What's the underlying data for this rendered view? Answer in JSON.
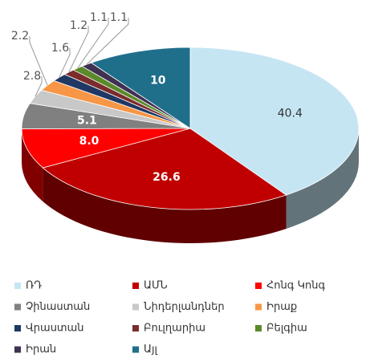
{
  "chart_data": {
    "type": "pie3d",
    "categories": [
      "ՌԴ",
      "ԱՄՆ",
      "Հոնգ Կոնգ",
      "Չինաստան",
      "Նիդերլանդներ",
      "Իրաք",
      "Վրաստան",
      "Բուլղարիա",
      "Բելգիա",
      "Իրան",
      "Այլ"
    ],
    "values": [
      40.4,
      26.6,
      8.0,
      5.1,
      2.8,
      2.2,
      1.6,
      1.2,
      1.1,
      1.1,
      10
    ],
    "value_labels": [
      "40.4",
      "26.6",
      "8.0",
      "5.1",
      "2.8",
      "2.2",
      "1.6",
      "1.2",
      "1.1",
      "1.1",
      "10"
    ],
    "colors": [
      "#c6e5f3",
      "#c00000",
      "#ff0000",
      "#808080",
      "#c8c8c8",
      "#f79646",
      "#1f3864",
      "#7b2c2c",
      "#5b8a2a",
      "#403152",
      "#1f6f8b"
    ],
    "legend": "bottom"
  }
}
